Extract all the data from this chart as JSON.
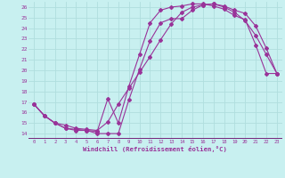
{
  "xlabel": "Windchill (Refroidissement éolien,°C)",
  "bg_color": "#c8f0f0",
  "grid_color": "#b0dede",
  "line_color": "#993399",
  "xlim": [
    -0.5,
    23.5
  ],
  "ylim": [
    13.5,
    26.5
  ],
  "yticks": [
    14,
    15,
    16,
    17,
    18,
    19,
    20,
    21,
    22,
    23,
    24,
    25,
    26
  ],
  "xticks": [
    0,
    1,
    2,
    3,
    4,
    5,
    6,
    7,
    8,
    9,
    10,
    11,
    12,
    13,
    14,
    15,
    16,
    17,
    18,
    19,
    20,
    21,
    22,
    23
  ],
  "line1_x": [
    0,
    1,
    2,
    3,
    4,
    5,
    6,
    7,
    8,
    9,
    10,
    11,
    12,
    13,
    14,
    15,
    16,
    17,
    18,
    19,
    20,
    21,
    22,
    23
  ],
  "line1_y": [
    16.8,
    15.7,
    15.0,
    14.5,
    14.4,
    14.3,
    14.0,
    14.0,
    14.0,
    17.2,
    20.1,
    22.8,
    24.5,
    24.9,
    24.9,
    25.7,
    26.2,
    26.3,
    26.1,
    25.7,
    25.4,
    24.2,
    22.1,
    19.7
  ],
  "line2_x": [
    0,
    1,
    2,
    3,
    4,
    5,
    6,
    7,
    8,
    9,
    10,
    11,
    12,
    13,
    14,
    15,
    16,
    17,
    18,
    19,
    20,
    21,
    22,
    23
  ],
  "line2_y": [
    16.8,
    15.7,
    15.0,
    14.8,
    14.5,
    14.4,
    14.3,
    15.1,
    16.8,
    18.3,
    19.8,
    21.3,
    22.9,
    24.4,
    25.5,
    26.0,
    26.2,
    26.3,
    26.0,
    25.5,
    24.7,
    23.3,
    21.5,
    19.7
  ],
  "line3_x": [
    0,
    1,
    2,
    3,
    4,
    5,
    6,
    7,
    8,
    9,
    10,
    11,
    12,
    13,
    14,
    15,
    16,
    17,
    18,
    19,
    20,
    21,
    22,
    23
  ],
  "line3_y": [
    16.8,
    15.7,
    15.0,
    14.5,
    14.3,
    14.3,
    14.2,
    17.3,
    15.0,
    18.5,
    21.5,
    24.5,
    25.7,
    26.0,
    26.1,
    26.3,
    26.3,
    26.1,
    25.8,
    25.2,
    24.8,
    22.4,
    19.7,
    19.7
  ]
}
